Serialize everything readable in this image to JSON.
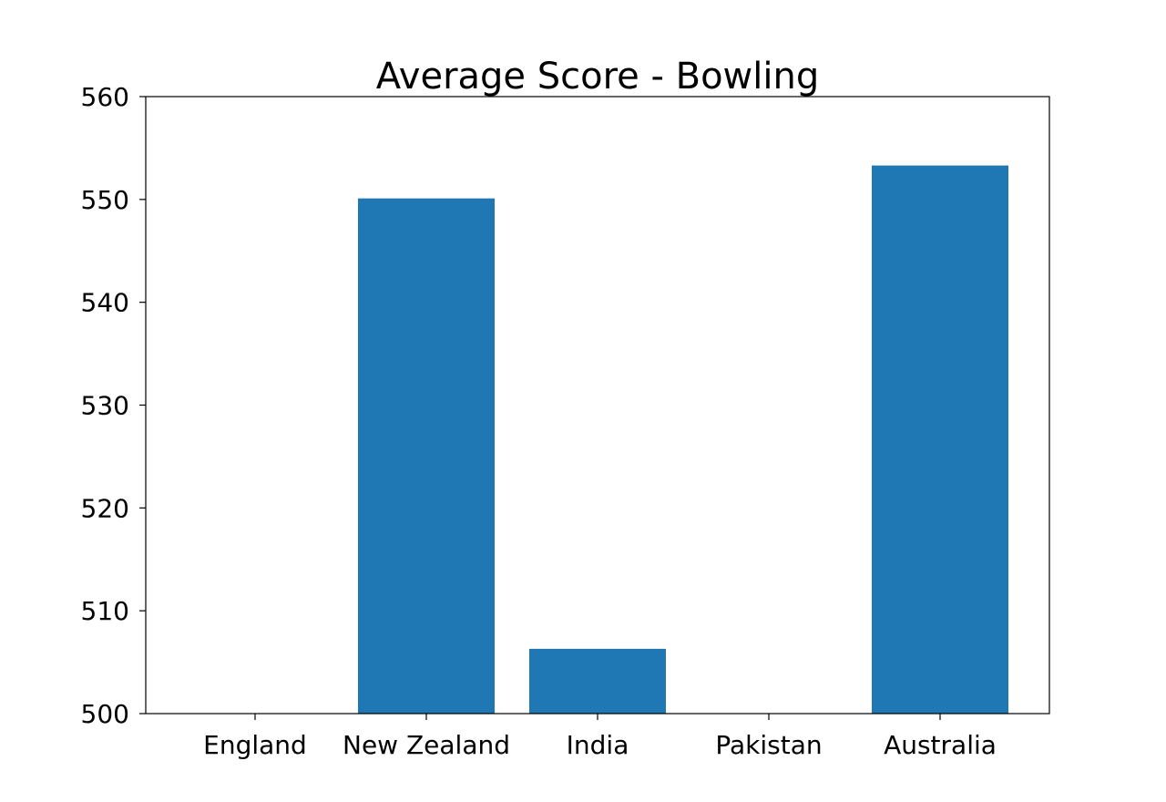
{
  "chart_data": {
    "type": "bar",
    "title": "Average Score - Bowling",
    "xlabel": "",
    "ylabel": "",
    "categories": [
      "England",
      "New Zealand",
      "India",
      "Pakistan",
      "Australia"
    ],
    "values": [
      500,
      550.1,
      506.3,
      500,
      553.3
    ],
    "ylim": [
      500,
      560
    ],
    "yticks": [
      500,
      510,
      520,
      530,
      540,
      550,
      560
    ],
    "bar_color": "#1f77b4",
    "grid": false
  }
}
